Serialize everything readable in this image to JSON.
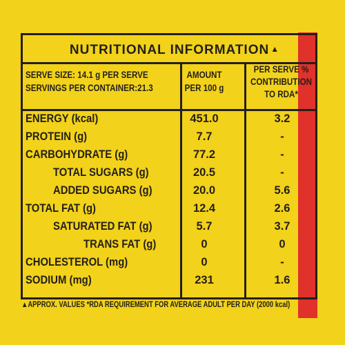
{
  "title": "NUTRITIONAL INFORMATION",
  "title_mark": "▲",
  "header": {
    "serve_size": "SERVE SIZE: 14.1 g PER SERVE",
    "servings": "SERVINGS PER CONTAINER:21.3",
    "amount_line1": "AMOUNT",
    "amount_line2": "PER 100 g",
    "rda_line1": "PER SERVE %",
    "rda_line2": "CONTRIBUTION",
    "rda_line3": "TO RDA*"
  },
  "rows": [
    {
      "label": "ENERGY (kcal)",
      "amount": "451.0",
      "rda": "3.2"
    },
    {
      "label": "PROTEIN (g)",
      "amount": "7.7",
      "rda": "-"
    },
    {
      "label": "CARBOHYDRATE (g)",
      "amount": "77.2",
      "rda": "-"
    },
    {
      "label": "TOTAL SUGARS (g)",
      "amount": "20.5",
      "rda": "-"
    },
    {
      "label": "ADDED SUGARS (g)",
      "amount": "20.0",
      "rda": "5.6"
    },
    {
      "label": "TOTAL FAT (g)",
      "amount": "12.4",
      "rda": "2.6"
    },
    {
      "label": "SATURATED FAT (g)",
      "amount": "5.7",
      "rda": "3.7"
    },
    {
      "label": "TRANS FAT (g)",
      "amount": "0",
      "rda": "0"
    },
    {
      "label": "CHOLESTEROL (mg)",
      "amount": "0",
      "rda": "-"
    },
    {
      "label": "SODIUM (mg)",
      "amount": "231",
      "rda": "1.6"
    }
  ],
  "footer": "▲APPROX. VALUES *RDA REQUIREMENT FOR AVERAGE ADULT PER DAY (2000 kcal)",
  "colors": {
    "background": "#f2d21a",
    "ink": "#231f1a",
    "accent_band": "#e0312a"
  }
}
